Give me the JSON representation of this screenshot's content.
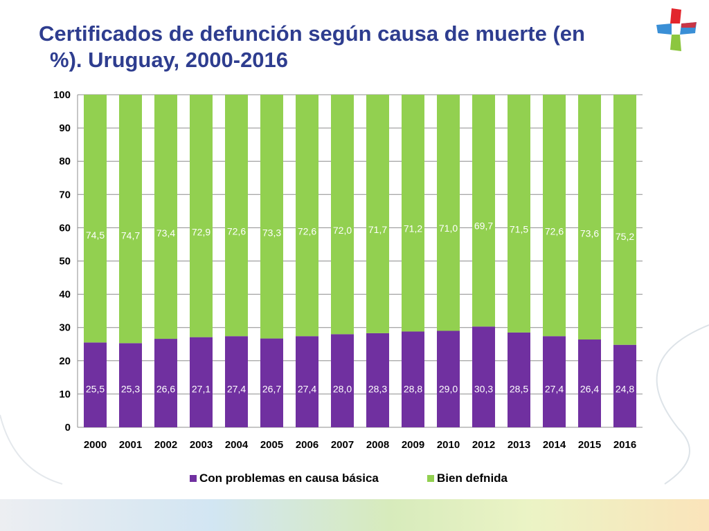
{
  "title": {
    "line1": "Certificados de defunción según causa de muerte (en",
    "line2": "%).  Uruguay, 2000-2016"
  },
  "colors": {
    "title": "#2e3d8f",
    "series_problem": "#7030a0",
    "series_defined": "#92d050",
    "logo_red": "#e2262d",
    "logo_green": "#8cc63f",
    "logo_blue": "#3a8fd6"
  },
  "chart_data": {
    "type": "bar",
    "stacked": true,
    "categories": [
      "2000",
      "2001",
      "2002",
      "2003",
      "2004",
      "2005",
      "2006",
      "2007",
      "2008",
      "2009",
      "2010",
      "2012",
      "2013",
      "2014",
      "2015",
      "2016"
    ],
    "series": [
      {
        "name": "Con problemas en causa básica",
        "values": [
          25.5,
          25.3,
          26.6,
          27.1,
          27.4,
          26.7,
          27.4,
          28.0,
          28.3,
          28.8,
          29.0,
          30.3,
          28.5,
          27.4,
          26.4,
          24.8
        ],
        "labels": [
          "25,5",
          "25,3",
          "26,6",
          "27,1",
          "27,4",
          "26,7",
          "27,4",
          "28,0",
          "28,3",
          "28,8",
          "29,0",
          "30,3",
          "28,5",
          "27,4",
          "26,4",
          "24,8"
        ]
      },
      {
        "name": "Bien defnida",
        "values": [
          74.5,
          74.7,
          73.4,
          72.9,
          72.6,
          73.3,
          72.6,
          72.0,
          71.7,
          71.2,
          71.0,
          69.7,
          71.5,
          72.6,
          73.6,
          75.2
        ],
        "labels": [
          "74,5",
          "74,7",
          "73,4",
          "72,9",
          "72,6",
          "73,3",
          "72,6",
          "72,0",
          "71,7",
          "71,2",
          "71,0",
          "69,7",
          "71,5",
          "72,6",
          "73,6",
          "75,2"
        ]
      }
    ],
    "ylim": [
      0,
      100
    ],
    "yticks": [
      "0",
      "10",
      "20",
      "30",
      "40",
      "50",
      "60",
      "70",
      "80",
      "90",
      "100"
    ],
    "grid": true,
    "legend": "bottom"
  }
}
